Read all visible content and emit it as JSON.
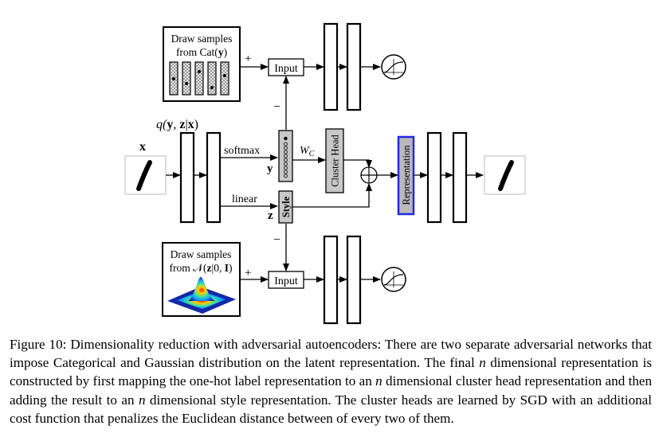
{
  "figure": {
    "top_box": {
      "line1": "Draw samples",
      "line2": "from Cat(",
      "line2_bold": "y",
      "line2_end": ")"
    },
    "bottom_box": {
      "line1": "Draw samples",
      "line2": "from 𝒩(",
      "line2_bold": "z",
      "line2_mid": "|0, ",
      "line2_bold2": "I",
      "line2_end": ")"
    },
    "plus_top": "+",
    "plus_bottom": "+",
    "minus_top": "−",
    "minus_bottom": "−",
    "input_top": "Input",
    "input_bottom": "Input",
    "encoder_label": {
      "pre": "q(",
      "y": "y",
      "comma": ", ",
      "z": "z",
      "bar": "|",
      "x": "x",
      "post": ")"
    },
    "x_label": "x",
    "softmax_label": "softmax",
    "linear_label": "linear",
    "y_label": "y",
    "z_label": "z",
    "style_label": "Style",
    "wc_label": {
      "main": "W",
      "sub": "C"
    },
    "cluster_head_label": "Cluster Head",
    "representation_label": "Representation",
    "colors": {
      "representation_fill": "#b9b9b9",
      "representation_border": "#1f2be0",
      "box_fill": "#c8c8c8"
    }
  },
  "caption": {
    "label": "Figure 10:",
    "text": " Dimensionality reduction with adversarial autoencoders: There are two separate adversarial networks that impose Categorical and Gaussian distribution on the latent representation. The final ",
    "n1": "n",
    "text2": " dimensional representation is constructed by first mapping the one-hot label representation to an ",
    "n2": "n",
    "text3": " dimensional cluster head representation and then adding the result to an ",
    "n3": "n",
    "text4": " dimensional style representation. The cluster heads are learned by SGD with an additional cost function that penalizes the Euclidean distance between of every two of them."
  }
}
